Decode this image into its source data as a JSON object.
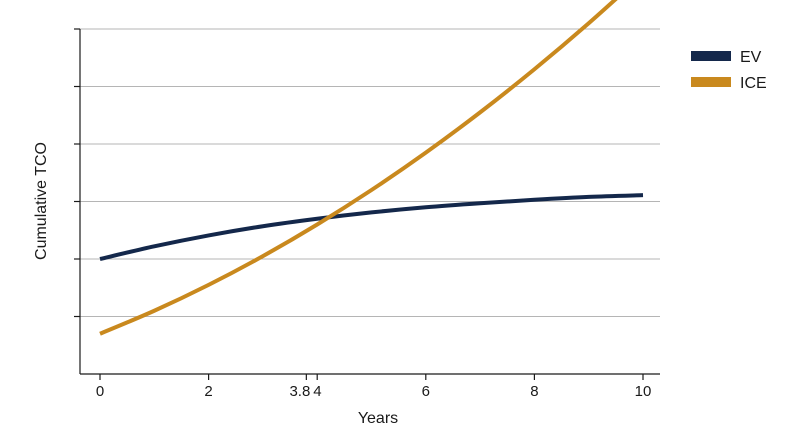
{
  "chart_data": {
    "type": "line",
    "title": "",
    "xlabel": "Years",
    "ylabel": "Cumulative TCO",
    "xlim": [
      0,
      10
    ],
    "ylim": [
      0,
      6
    ],
    "x_ticks": [
      {
        "value": 0,
        "label": "0"
      },
      {
        "value": 2,
        "label": "2"
      },
      {
        "value": 3.8,
        "label": "3.8"
      },
      {
        "value": 4,
        "label": "4"
      },
      {
        "value": 6,
        "label": "6"
      },
      {
        "value": 8,
        "label": "8"
      },
      {
        "value": 10,
        "label": "10"
      }
    ],
    "y_ticks": [
      1,
      2,
      3,
      4,
      5,
      6
    ],
    "grid": "horizontal",
    "legend": "top-right",
    "x": [
      0,
      1,
      2,
      3,
      4,
      5,
      6,
      7,
      8,
      9,
      10
    ],
    "series": [
      {
        "name": "EV",
        "color": "#14284b",
        "values": [
          2.0,
          2.22,
          2.41,
          2.57,
          2.7,
          2.81,
          2.9,
          2.97,
          3.03,
          3.08,
          3.11
        ]
      },
      {
        "name": "ICE",
        "color": "#c9891e",
        "values": [
          0.7,
          1.1,
          1.55,
          2.05,
          2.6,
          3.2,
          3.85,
          4.55,
          5.3,
          6.1,
          6.95
        ]
      }
    ]
  }
}
